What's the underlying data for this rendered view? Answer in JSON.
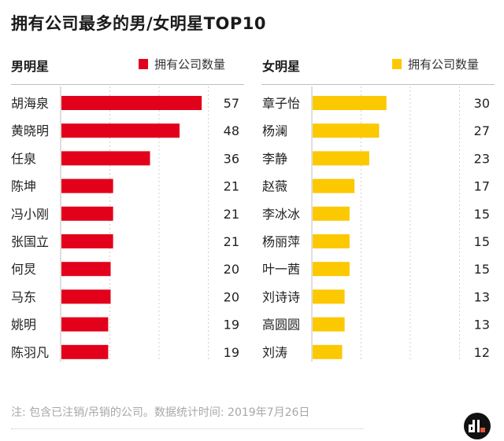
{
  "title": "拥有公司最多的男/女明星TOP10",
  "colors": {
    "male": "#e2001a",
    "female": "#fcc800",
    "grid": "#cfcfcf",
    "axis": "#bdbdbd"
  },
  "chart_data": [
    {
      "type": "bar",
      "orientation": "horizontal",
      "panel_title": "男明星",
      "legend": "拥有公司数量",
      "categories": [
        "胡海泉",
        "黄晓明",
        "任泉",
        "陈坤",
        "冯小刚",
        "张国立",
        "何炅",
        "马东",
        "姚明",
        "陈羽凡"
      ],
      "values": [
        57,
        48,
        36,
        21,
        21,
        21,
        20,
        20,
        19,
        19
      ],
      "value_labels": [
        "57",
        "48",
        "36",
        "21",
        "21",
        "21",
        "20",
        "20",
        "19",
        "19"
      ],
      "xlim": [
        0,
        60
      ],
      "grid_step": 20,
      "grid": true
    },
    {
      "type": "bar",
      "orientation": "horizontal",
      "panel_title": "女明星",
      "legend": "拥有公司数量",
      "categories": [
        "章子怡",
        "杨澜",
        "李静",
        "赵薇",
        "李冰冰",
        "杨丽萍",
        "叶一茜",
        "刘诗诗",
        "高圆圆",
        "刘涛"
      ],
      "values": [
        30,
        27,
        23,
        17,
        15,
        15,
        15,
        13,
        13,
        12
      ],
      "value_labels": [
        "30",
        "27",
        "23",
        "17",
        "15",
        "15",
        "15",
        "13",
        "13",
        "12"
      ],
      "xlim": [
        0,
        60
      ],
      "grid_step": 20,
      "grid": true
    }
  ],
  "footer": {
    "note": "注: 包含已注销/吊销的公司。数据统计时间: 2019年7月26日",
    "logo_text": "dt"
  }
}
